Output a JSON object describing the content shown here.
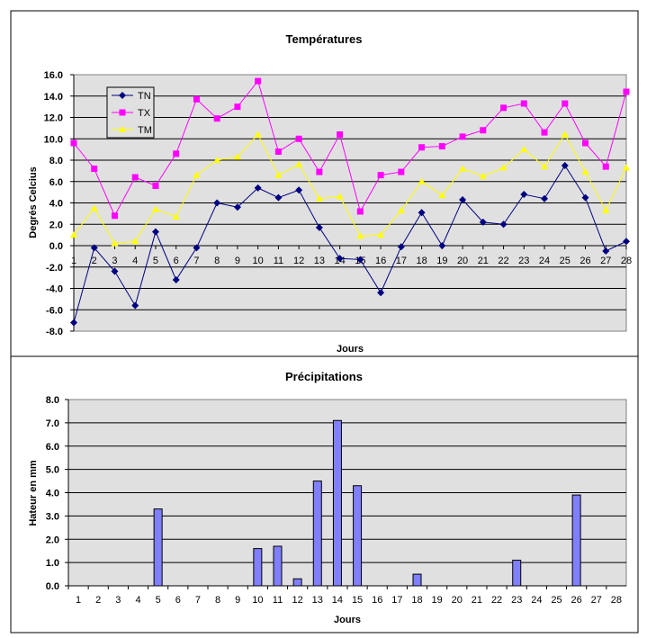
{
  "chart_data": [
    {
      "type": "line",
      "title": "Températures",
      "xlabel": "Jours",
      "ylabel": "Degrés Celcius",
      "ylim": [
        -8,
        16
      ],
      "yticks": [
        "-8.0",
        "-6.0",
        "-4.0",
        "-2.0",
        "0.0",
        "2.0",
        "4.0",
        "6.0",
        "8.0",
        "10.0",
        "12.0",
        "14.0",
        "16.0"
      ],
      "ytick_values": [
        -8,
        -6,
        -4,
        -2,
        0,
        2,
        4,
        6,
        8,
        10,
        12,
        14,
        16
      ],
      "x": [
        "1",
        "2",
        "3",
        "4",
        "5",
        "6",
        "7",
        "8",
        "9",
        "10",
        "11",
        "12",
        "13",
        "14",
        "15",
        "16",
        "17",
        "18",
        "19",
        "20",
        "21",
        "22",
        "23",
        "24",
        "25",
        "26",
        "27",
        "28"
      ],
      "grid": true,
      "legend": "top-left",
      "series": [
        {
          "name": "TN",
          "color": "#000080",
          "marker": "diamond",
          "values": [
            -7.2,
            -0.2,
            -2.4,
            -5.6,
            1.3,
            -3.2,
            -0.2,
            4.0,
            3.6,
            5.4,
            4.5,
            5.2,
            1.7,
            -1.2,
            -1.3,
            -4.4,
            -0.1,
            3.1,
            0.0,
            4.3,
            2.2,
            2.0,
            4.8,
            4.4,
            7.5,
            4.5,
            -0.5,
            0.4
          ]
        },
        {
          "name": "TX",
          "color": "#FF00FF",
          "marker": "square",
          "values": [
            9.6,
            7.2,
            2.8,
            6.4,
            5.6,
            8.6,
            13.7,
            11.9,
            13.0,
            15.4,
            8.8,
            10.0,
            6.9,
            10.4,
            3.2,
            6.6,
            6.9,
            9.2,
            9.3,
            10.2,
            10.8,
            12.9,
            13.3,
            10.6,
            13.3,
            9.6,
            7.4,
            14.4
          ]
        },
        {
          "name": "TM",
          "color": "#FFFF00",
          "marker": "triangle",
          "values": [
            1.0,
            3.5,
            0.2,
            0.4,
            3.4,
            2.7,
            6.6,
            8.0,
            8.3,
            10.4,
            6.6,
            7.6,
            4.4,
            4.6,
            0.9,
            1.0,
            3.3,
            6.0,
            4.7,
            7.2,
            6.5,
            7.3,
            9.0,
            7.4,
            10.4,
            6.9,
            3.3,
            7.3
          ]
        }
      ]
    },
    {
      "type": "bar",
      "title": "Précipitations",
      "xlabel": "Jours",
      "ylabel": "Hateur en mm",
      "ylim": [
        0,
        8
      ],
      "yticks": [
        "0.0",
        "1.0",
        "2.0",
        "3.0",
        "4.0",
        "5.0",
        "6.0",
        "7.0",
        "8.0"
      ],
      "ytick_values": [
        0,
        1,
        2,
        3,
        4,
        5,
        6,
        7,
        8
      ],
      "categories": [
        "1",
        "2",
        "3",
        "4",
        "5",
        "6",
        "7",
        "8",
        "9",
        "10",
        "11",
        "12",
        "13",
        "14",
        "15",
        "16",
        "17",
        "18",
        "19",
        "20",
        "21",
        "22",
        "23",
        "24",
        "25",
        "26",
        "27",
        "28"
      ],
      "values": [
        0,
        0,
        0,
        0,
        3.3,
        0,
        0,
        0,
        0,
        1.6,
        1.7,
        0.3,
        4.5,
        7.1,
        4.3,
        0,
        0,
        0.5,
        0,
        0,
        0,
        0,
        1.1,
        0,
        0,
        3.9,
        0,
        0
      ],
      "bar_color": "#8080FF",
      "grid": true
    }
  ]
}
